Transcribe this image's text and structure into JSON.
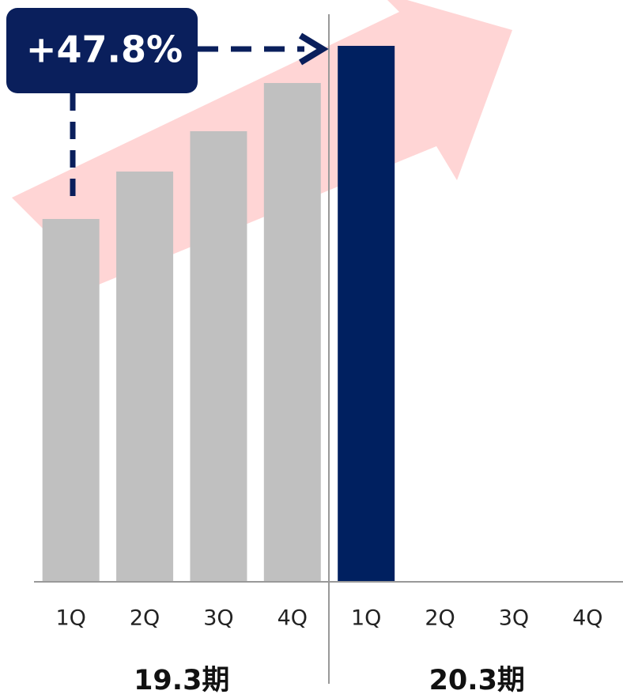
{
  "chart_data": {
    "type": "bar",
    "categories": [
      "1Q",
      "2Q",
      "3Q",
      "4Q",
      "1Q",
      "2Q",
      "3Q",
      "4Q"
    ],
    "values": [
      459,
      519,
      570,
      631,
      678,
      null,
      null,
      null
    ],
    "colors": [
      "#c0c0c0",
      "#c0c0c0",
      "#c0c0c0",
      "#c0c0c0",
      "#002060",
      "#002060",
      "#002060",
      "#002060"
    ],
    "groups": [
      {
        "label": "19.3期",
        "size": 4
      },
      {
        "label": "20.3期",
        "size": 4
      }
    ],
    "annotation": "+47.8%",
    "ylim": [
      0,
      736
    ]
  }
}
